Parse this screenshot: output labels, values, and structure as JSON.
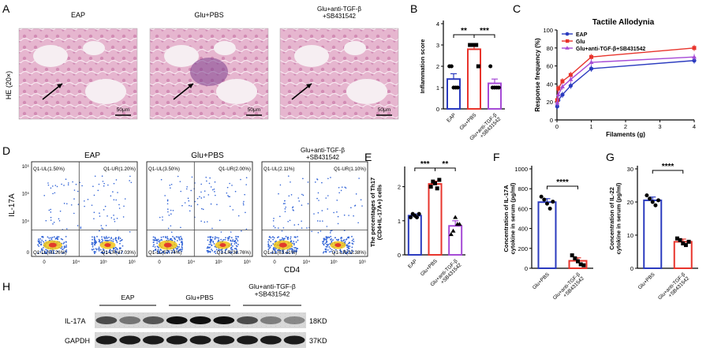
{
  "panels": {
    "A": {
      "letter": "A",
      "ylabel": "HE (20×)",
      "images": [
        {
          "title": "EAP",
          "scale": "50μm"
        },
        {
          "title": "Glu+PBS",
          "scale": "50μm"
        },
        {
          "title": "Glu+anti-TGF-β\n+SB431542",
          "scale": "50μm"
        }
      ]
    },
    "B": {
      "letter": "B"
    },
    "C": {
      "letter": "C"
    },
    "D": {
      "letter": "D",
      "ylabel": "IL-17A",
      "xlabel": "CD4",
      "plots": [
        {
          "title": "EAP",
          "UL": "Q1-UL(1.50%)",
          "UR": "Q1-UR(1.20%)",
          "LL": "Q1-LL(50.26%)",
          "LR": "Q1-LR(47.03%)"
        },
        {
          "title": "Glu+PBS",
          "UL": "Q1-UL(3.50%)",
          "UR": "Q1-UR(2.00%)",
          "LL": "Q1-LL(57.74%)",
          "LR": "Q1-LR(36.76%)"
        },
        {
          "title": "Glu+anti-TGF-β\n+SB431542",
          "UL": "Q1-UL(2.11%)",
          "UR": "Q1-UR(1.10%)",
          "LL": "Q1-LL(63.41%)",
          "LR": "Q1-LR(33.38%)"
        }
      ],
      "ticks": [
        "0",
        "10⁴",
        "10⁵",
        "10⁶"
      ]
    },
    "E": {
      "letter": "E"
    },
    "F": {
      "letter": "F"
    },
    "G": {
      "letter": "G"
    },
    "H": {
      "letter": "H",
      "groups": [
        "EAP",
        "Glu+PBS",
        "Glu+anti-TGF-β\n+SB431542"
      ],
      "rows": [
        {
          "label": "IL-17A",
          "size": "18KD"
        },
        {
          "label": "GAPDH",
          "size": "37KD"
        }
      ]
    }
  },
  "colors": {
    "eap": "#2b3bbf",
    "glu": "#e8342c",
    "combo": "#a64bd6",
    "axis": "#000000"
  },
  "chart_data": [
    {
      "id": "B",
      "type": "bar",
      "ylabel": "Inflammation score",
      "categories": [
        "EAP",
        "Glu+PBS",
        "Glu+anti-TGF-β\n+SB431542"
      ],
      "values": [
        1.4,
        2.8,
        1.2
      ],
      "errors": [
        0.25,
        0.2,
        0.2
      ],
      "points": [
        [
          2,
          2,
          1,
          1,
          1
        ],
        [
          3,
          3,
          3,
          3,
          2
        ],
        [
          2,
          1,
          1,
          1,
          1
        ]
      ],
      "ylim": [
        0,
        4
      ],
      "yticks": [
        0,
        1,
        2,
        3,
        4
      ],
      "sig": [
        {
          "from": 0,
          "to": 1,
          "label": "**"
        },
        {
          "from": 1,
          "to": 2,
          "label": "***"
        }
      ]
    },
    {
      "id": "C",
      "type": "line",
      "title": "Tactile Allodynia",
      "xlabel": "Filaments (g)",
      "ylabel": "Response frequency (%)",
      "x": [
        0.008,
        0.04,
        0.16,
        0.4,
        1,
        4
      ],
      "xlim": [
        0,
        4
      ],
      "xticks": [
        0,
        1,
        2,
        3,
        4
      ],
      "ylim": [
        0,
        100
      ],
      "yticks": [
        0,
        20,
        40,
        60,
        80,
        100
      ],
      "legend_position": "top-left",
      "series": [
        {
          "name": "EAP",
          "values": [
            15,
            22,
            28,
            38,
            57,
            66
          ],
          "marker": "circle",
          "color": "#2b3bbf"
        },
        {
          "name": "Glu",
          "values": [
            22,
            35,
            43,
            50,
            70,
            80
          ],
          "marker": "square",
          "color": "#e8342c"
        },
        {
          "name": "Glu+anti-TGF-β+SB431542",
          "values": [
            19,
            28,
            37,
            45,
            64,
            70
          ],
          "marker": "triangle",
          "color": "#a64bd6"
        }
      ]
    },
    {
      "id": "E",
      "type": "bar",
      "ylabel": "The percentages of Th17\n(CD4+IL-17A+) cells",
      "categories": [
        "EAP",
        "Glu+PBS",
        "Glu+anti-TGF-β\n+SB431542"
      ],
      "values": [
        1.15,
        2.08,
        0.85
      ],
      "errors": [
        0.05,
        0.08,
        0.15
      ],
      "points": [
        [
          1.1,
          1.2,
          1.15,
          1.1,
          1.2
        ],
        [
          2.0,
          2.15,
          2.1,
          1.95,
          2.2
        ],
        [
          0.6,
          0.7,
          1.1,
          0.9,
          0.9
        ]
      ],
      "ylim": [
        0,
        2.5
      ],
      "yticks": [
        0,
        1,
        2
      ],
      "sig": [
        {
          "from": 0,
          "to": 1,
          "label": "***"
        },
        {
          "from": 1,
          "to": 2,
          "label": "**"
        }
      ]
    },
    {
      "id": "F",
      "type": "bar",
      "ylabel": "Concentration of IL-17A\ncytokine in serum (pg/ml)",
      "categories": [
        "Glu+PBS",
        "Glu+anti-TGF-β\n+SB431542"
      ],
      "values": [
        665,
        75
      ],
      "errors": [
        35,
        30
      ],
      "points": [
        [
          720,
          690,
          650,
          600,
          670
        ],
        [
          130,
          100,
          70,
          40,
          30
        ]
      ],
      "ylim": [
        0,
        1000
      ],
      "yticks": [
        0,
        200,
        400,
        600,
        800,
        1000
      ],
      "sig": [
        {
          "from": 0,
          "to": 1,
          "label": "****"
        }
      ]
    },
    {
      "id": "G",
      "type": "bar",
      "ylabel": "Concentration of IL-22\ncytokine in serum (pg/ml)",
      "categories": [
        "Glu+PBS",
        "Glu+anti-TGF-β\n+SB431542"
      ],
      "values": [
        20.5,
        8
      ],
      "errors": [
        1,
        0.8
      ],
      "points": [
        [
          22,
          21,
          20,
          19,
          20.5
        ],
        [
          9,
          8.5,
          7.5,
          7,
          8
        ]
      ],
      "ylim": [
        0,
        30
      ],
      "yticks": [
        0,
        10,
        20,
        30
      ],
      "sig": [
        {
          "from": 0,
          "to": 1,
          "label": "****"
        }
      ]
    }
  ]
}
